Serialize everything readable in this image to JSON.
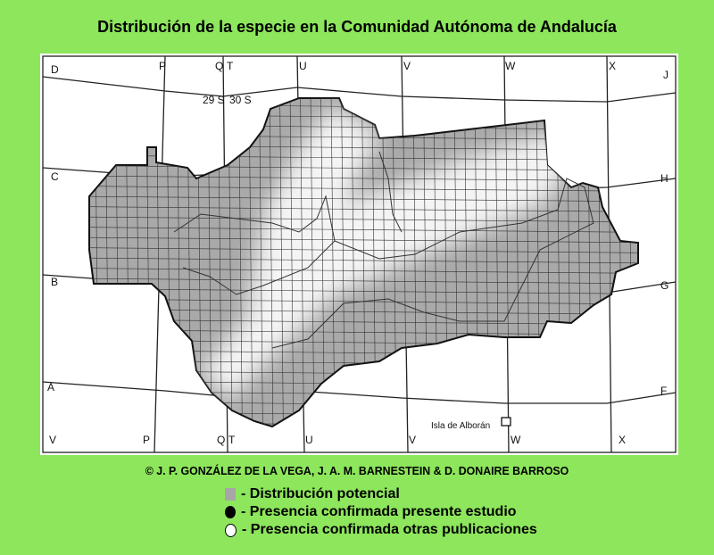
{
  "title": "Distribución de la especie en la Comunidad Autónoma de Andalucía",
  "credit": "©  J. P. GONZÁLEZ DE LA VEGA, J. A. M. BARNESTEIN & D. DONAIRE BARROSO",
  "legend": [
    {
      "symbol": "gray-square",
      "color": "#a6a6a6",
      "label": "- Distribución potencial"
    },
    {
      "symbol": "black-circle",
      "color": "#000000",
      "label": "- Presencia confirmada presente estudio"
    },
    {
      "symbol": "white-circle",
      "color": "#ffffff",
      "label": "- Presencia confirmada otras publicaciones"
    }
  ],
  "map": {
    "top_labels": [
      "D",
      "P",
      "Q",
      "T",
      "U",
      "V",
      "W",
      "X",
      "J"
    ],
    "bottom_labels": [
      "V",
      "P",
      "Q",
      "T",
      "U",
      "V",
      "W",
      "X"
    ],
    "left_labels": [
      "C",
      "B",
      "A"
    ],
    "right_labels": [
      "H",
      "G",
      "F"
    ],
    "zones": [
      "29 S",
      "30 S"
    ],
    "island_label": "Isla de Alborán"
  }
}
